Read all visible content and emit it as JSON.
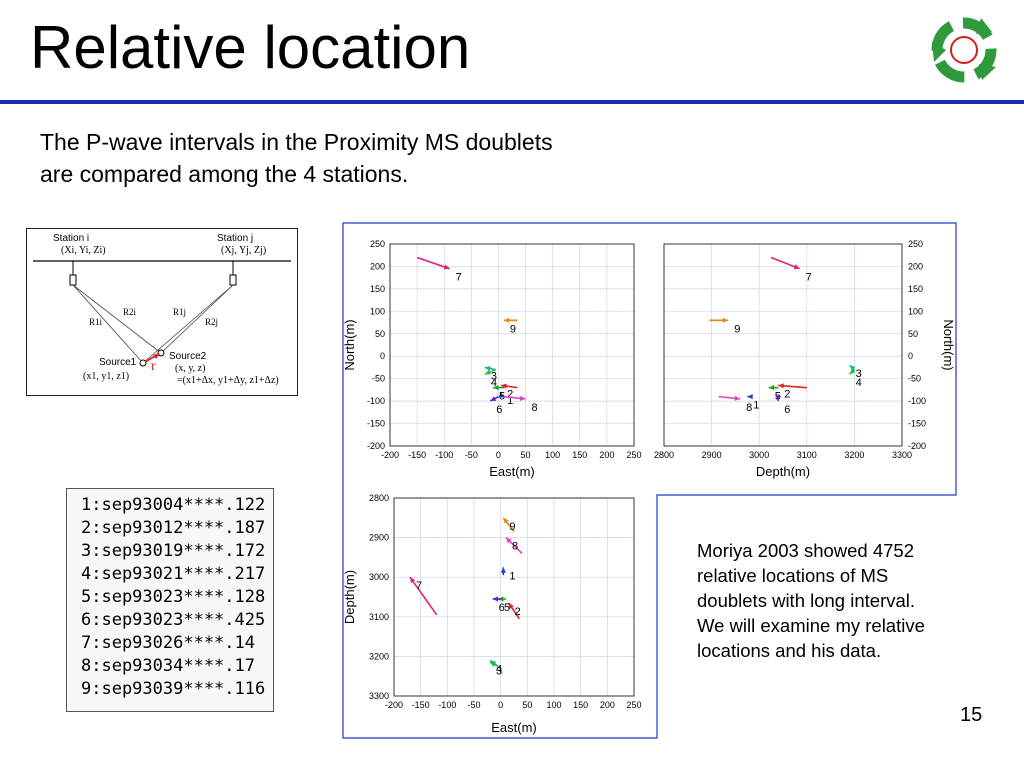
{
  "slide": {
    "title": "Relative location",
    "intro_lines": [
      "The P-wave intervals in the Proximity MS doublets",
      "are compared among the 4 stations."
    ],
    "accent_color": "#1a2fb0",
    "logo_colors": {
      "ring": "#2e9a3c",
      "center": "#d32020"
    },
    "page_number": "15"
  },
  "source_diagram": {
    "station_i": "Station i",
    "station_j": "Station j",
    "coords_i": "(Xi, Yi, Zi)",
    "coords_j": "(Xj, Yj, Zj)",
    "r2i": "R2i",
    "r1i": "R1i",
    "r1j": "R1j",
    "r2j": "R2j",
    "source1": "Source1",
    "source2": "Source2",
    "source1_coords": "(x1, y1, z1)",
    "source2_coords": "(x, y, z)",
    "source2_delta": "=(x1+Δx, y1+Δy, z1+Δz)",
    "r_label": "r"
  },
  "doublets": {
    "rows": [
      "1:sep93004****.122",
      "2:sep93012****.187",
      "3:sep93019****.172",
      "4:sep93021****.217",
      "5:sep93023****.128",
      "6:sep93023****.425",
      "7:sep93026****.14",
      "8:sep93034****.17",
      "9:sep93039****.116"
    ]
  },
  "note": {
    "lines": [
      "Moriya 2003 showed 4752",
      "relative locations of MS",
      "doublets with long interval.",
      "We will examine my relative",
      "locations and his data."
    ]
  },
  "chart_data": [
    {
      "type": "scatter",
      "xlabel": "East(m)",
      "ylabel": "North(m)",
      "xlim": [
        -200,
        250
      ],
      "ylim": [
        -200,
        250
      ],
      "xticks": [
        "-200",
        "-150",
        "-100",
        "-50",
        "0",
        "50",
        "100",
        "150",
        "200",
        "250"
      ],
      "yticks": [
        "250",
        "200",
        "150",
        "100",
        "50",
        "0",
        "-50",
        "-100",
        "-150",
        "-200"
      ],
      "points": [
        {
          "label": "1",
          "x": 5,
          "y": -90,
          "dx": 0,
          "dy": 10,
          "color": "#1f3fd0"
        },
        {
          "label": "2",
          "x": 35,
          "y": -70,
          "dx": -30,
          "dy": 5,
          "color": "#e02020"
        },
        {
          "label": "3",
          "x": -5,
          "y": -30,
          "dx": -20,
          "dy": 5,
          "color": "#1fb0a0"
        },
        {
          "label": "4",
          "x": -5,
          "y": -30,
          "dx": -20,
          "dy": -10,
          "color": "#20c040"
        },
        {
          "label": "5",
          "x": 10,
          "y": -70,
          "dx": -20,
          "dy": 0,
          "color": "#20a020"
        },
        {
          "label": "6",
          "x": 0,
          "y": -90,
          "dx": -15,
          "dy": -10,
          "color": "#6a20d0"
        },
        {
          "label": "7",
          "x": -150,
          "y": 220,
          "dx": 60,
          "dy": -25,
          "color": "#e0207a"
        },
        {
          "label": "8",
          "x": 10,
          "y": -90,
          "dx": 40,
          "dy": -5,
          "color": "#e040c0"
        },
        {
          "label": "9",
          "x": 35,
          "y": 80,
          "dx": -25,
          "dy": 0,
          "color": "#e08a10"
        }
      ]
    },
    {
      "type": "scatter",
      "xlabel": "Depth(m)",
      "ylabel": "North(m)",
      "xlim": [
        2800,
        3300
      ],
      "ylim": [
        -200,
        250
      ],
      "xticks": [
        "2800",
        "2900",
        "3000",
        "3100",
        "3200",
        "3300"
      ],
      "yticks": [
        "250",
        "200",
        "150",
        "100",
        "50",
        "0",
        "-50",
        "-100",
        "-150",
        "-200"
      ],
      "points": [
        {
          "label": "1",
          "x": 2985,
          "y": -90,
          "dx": -10,
          "dy": 0,
          "color": "#1f3fd0"
        },
        {
          "label": "2",
          "x": 3100,
          "y": -70,
          "dx": -60,
          "dy": 5,
          "color": "#e02020"
        },
        {
          "label": "3",
          "x": 3200,
          "y": -30,
          "dx": -10,
          "dy": 10,
          "color": "#1fb0a0"
        },
        {
          "label": "4",
          "x": 3200,
          "y": -30,
          "dx": -10,
          "dy": -10,
          "color": "#20c040"
        },
        {
          "label": "5",
          "x": 3040,
          "y": -70,
          "dx": -20,
          "dy": 0,
          "color": "#20a020"
        },
        {
          "label": "6",
          "x": 3040,
          "y": -90,
          "dx": 0,
          "dy": -10,
          "color": "#6a20d0"
        },
        {
          "label": "7",
          "x": 3025,
          "y": 220,
          "dx": 60,
          "dy": -25,
          "color": "#e0207a"
        },
        {
          "label": "8",
          "x": 2915,
          "y": -90,
          "dx": 45,
          "dy": -5,
          "color": "#e040c0"
        },
        {
          "label": "9",
          "x": 2895,
          "y": 80,
          "dx": 40,
          "dy": 0,
          "color": "#e08a10"
        }
      ]
    },
    {
      "type": "scatter",
      "xlabel": "East(m)",
      "ylabel": "Depth(m)",
      "xlim": [
        -200,
        250
      ],
      "ylim": [
        3300,
        2800
      ],
      "xticks": [
        "-200",
        "-150",
        "-100",
        "-50",
        "0",
        "50",
        "100",
        "150",
        "200",
        "250"
      ],
      "yticks": [
        "2800",
        "2900",
        "3000",
        "3100",
        "3200",
        "3300"
      ],
      "points": [
        {
          "label": "1",
          "x": 5,
          "y": 2995,
          "dx": 0,
          "dy": -20,
          "color": "#1f3fd0"
        },
        {
          "label": "2",
          "x": 35,
          "y": 3105,
          "dx": -20,
          "dy": -40,
          "color": "#e02020"
        },
        {
          "label": "3",
          "x": -5,
          "y": 3225,
          "dx": -15,
          "dy": -10,
          "color": "#1fb0a0"
        },
        {
          "label": "4",
          "x": -5,
          "y": 3225,
          "dx": -15,
          "dy": -15,
          "color": "#20c040"
        },
        {
          "label": "5",
          "x": 10,
          "y": 3055,
          "dx": -15,
          "dy": 0,
          "color": "#20a020"
        },
        {
          "label": "6",
          "x": 0,
          "y": 3055,
          "dx": -15,
          "dy": 0,
          "color": "#6a20d0"
        },
        {
          "label": "7",
          "x": -120,
          "y": 3095,
          "dx": -50,
          "dy": -95,
          "color": "#e0207a"
        },
        {
          "label": "8",
          "x": 40,
          "y": 2940,
          "dx": -30,
          "dy": -40,
          "color": "#e040c0"
        },
        {
          "label": "9",
          "x": 25,
          "y": 2885,
          "dx": -20,
          "dy": -35,
          "color": "#e08a10"
        }
      ]
    }
  ]
}
